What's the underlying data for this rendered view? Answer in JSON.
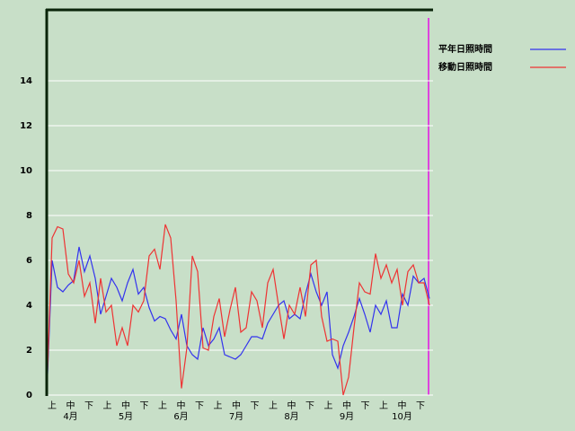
{
  "chart_data": {
    "type": "line",
    "dekad_labels": [
      "上",
      "中",
      "下",
      "上",
      "中",
      "下",
      "上",
      "中",
      "下",
      "上",
      "中",
      "下",
      "上",
      "中",
      "下",
      "上",
      "中",
      "下",
      "上",
      "中",
      "下"
    ],
    "month_labels": [
      "4月",
      "5月",
      "6月",
      "7月",
      "8月",
      "9月",
      "10月"
    ],
    "ylim": [
      0,
      17.2
    ],
    "yticks": [
      0,
      2,
      4,
      6,
      8,
      10,
      12,
      14
    ],
    "grid": true,
    "series": [
      {
        "name": "平年日照時間",
        "color": "#3333ee",
        "values": [
          0,
          6,
          4.8,
          4.6,
          4.9,
          5.1,
          6.6,
          5.5,
          6.2,
          5.2,
          3.6,
          4.4,
          5.2,
          4.8,
          4.2,
          5.0,
          5.6,
          4.5,
          4.8,
          3.9,
          3.3,
          3.5,
          3.4,
          2.9,
          2.5,
          3.6,
          2.2,
          1.8,
          1.6,
          3.0,
          2.2,
          2.5,
          3.0,
          1.8,
          1.7,
          1.6,
          1.8,
          2.2,
          2.6,
          2.6,
          2.5,
          3.2,
          3.6,
          4.0,
          4.2,
          3.4,
          3.6,
          3.4,
          4.5,
          5.4,
          4.6,
          4.0,
          4.6,
          1.8,
          1.2,
          2.2,
          2.8,
          3.5,
          4.3,
          3.6,
          2.8,
          4.0,
          3.6,
          4.2,
          3.0,
          3.0,
          4.5,
          4.0,
          5.3,
          5.0,
          5.2,
          4.3
        ]
      },
      {
        "name": "移動日照時間",
        "color": "#ee3333",
        "values": [
          0,
          7.0,
          7.5,
          7.4,
          5.4,
          5.0,
          6.0,
          4.4,
          5.0,
          3.2,
          5.2,
          3.7,
          4.0,
          2.2,
          3.0,
          2.2,
          4.0,
          3.7,
          4.2,
          6.2,
          6.5,
          5.6,
          7.6,
          7.0,
          4.2,
          0.3,
          2.1,
          6.2,
          5.5,
          2.1,
          2.0,
          3.5,
          4.3,
          2.6,
          3.8,
          4.8,
          2.8,
          3.0,
          4.6,
          4.2,
          3.0,
          5.0,
          5.6,
          4.0,
          2.5,
          4.0,
          3.6,
          4.8,
          3.5,
          5.8,
          6.0,
          3.5,
          2.4,
          2.5,
          2.4,
          0,
          0.8,
          3.0,
          5.0,
          4.6,
          4.5,
          6.3,
          5.2,
          5.8,
          5.0,
          5.6,
          4.0,
          5.5,
          5.8,
          5.0,
          5.0,
          4.0
        ]
      }
    ]
  }
}
